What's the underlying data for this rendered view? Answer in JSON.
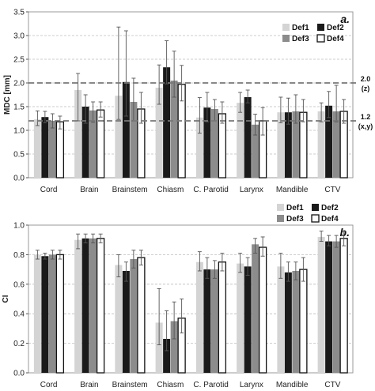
{
  "chart_data": [
    {
      "type": "bar",
      "panel_label": "a.",
      "title": "",
      "xlabel": "",
      "ylabel": "MDC [mm]",
      "ylim": [
        0,
        3.5
      ],
      "yticks": [
        "0.0",
        "0.5",
        "1.0",
        "1.5",
        "2.0",
        "2.5",
        "3.0",
        "3.5"
      ],
      "grid": "horizontal dashed",
      "legend_position": "top-right",
      "categories": [
        "Cord",
        "Brain",
        "Brainstem",
        "Chiasm",
        "C. Parotid",
        "Larynx",
        "Mandible",
        "CTV"
      ],
      "series": [
        {
          "name": "Def1",
          "color": "#d4d4d4",
          "values": [
            1.23,
            1.85,
            1.73,
            1.9,
            1.27,
            1.58,
            1.38,
            1.4
          ],
          "err_low": [
            0.13,
            0.65,
            0.5,
            0.35,
            0.33,
            0.2,
            0.22,
            0.22
          ],
          "err_high": [
            0.18,
            0.35,
            1.45,
            0.48,
            0.42,
            0.22,
            0.32,
            0.18
          ]
        },
        {
          "name": "Def2",
          "color": "#1a1a1a",
          "values": [
            1.28,
            1.5,
            2.02,
            2.33,
            1.48,
            1.7,
            1.38,
            1.52
          ],
          "err_low": [
            0.12,
            0.35,
            0.72,
            0.35,
            0.3,
            0.12,
            0.25,
            0.25
          ],
          "err_high": [
            0.12,
            0.25,
            1.08,
            0.56,
            0.32,
            0.15,
            0.3,
            0.3
          ]
        },
        {
          "name": "Def3",
          "color": "#8c8c8c",
          "values": [
            1.2,
            1.42,
            1.6,
            2.05,
            1.45,
            1.12,
            1.4,
            1.4
          ],
          "err_low": [
            0.15,
            0.25,
            0.4,
            0.35,
            0.25,
            0.22,
            0.25,
            0.22
          ],
          "err_high": [
            0.15,
            0.18,
            0.5,
            0.62,
            0.2,
            0.22,
            0.35,
            0.55
          ]
        },
        {
          "name": "Def4",
          "color": "#ffffff",
          "values": [
            1.18,
            1.43,
            1.45,
            1.97,
            1.35,
            1.2,
            1.38,
            1.4
          ],
          "err_low": [
            0.15,
            0.15,
            0.3,
            0.35,
            0.2,
            0.3,
            0.2,
            0.25
          ],
          "err_high": [
            0.12,
            0.17,
            0.35,
            0.4,
            0.25,
            0.28,
            0.27,
            0.25
          ]
        }
      ],
      "reference_lines": [
        {
          "value": 2.0,
          "label": "2.0",
          "sublabel": "(z)"
        },
        {
          "value": 1.2,
          "label": "1.2",
          "sublabel": "(x,y)"
        }
      ]
    },
    {
      "type": "bar",
      "panel_label": "b.",
      "title": "",
      "xlabel": "",
      "ylabel": "CI",
      "ylim": [
        0,
        1.0
      ],
      "yticks": [
        "0.0",
        "0.2",
        "0.4",
        "0.6",
        "0.8",
        "1.0"
      ],
      "grid": "horizontal dashed",
      "legend_position": "top-right",
      "categories": [
        "Cord",
        "Brain",
        "Brainstem",
        "Chiasm",
        "C. Parotid",
        "Larynx",
        "Mandible",
        "CTV"
      ],
      "series": [
        {
          "name": "Def1",
          "color": "#d4d4d4",
          "values": [
            0.8,
            0.9,
            0.73,
            0.34,
            0.75,
            0.74,
            0.72,
            0.92
          ],
          "err_low": [
            0.03,
            0.06,
            0.08,
            0.15,
            0.06,
            0.06,
            0.08,
            0.03
          ],
          "err_high": [
            0.03,
            0.04,
            0.07,
            0.23,
            0.07,
            0.07,
            0.09,
            0.04
          ]
        },
        {
          "name": "Def2",
          "color": "#1a1a1a",
          "values": [
            0.79,
            0.91,
            0.69,
            0.23,
            0.7,
            0.72,
            0.68,
            0.89
          ],
          "err_low": [
            0.02,
            0.03,
            0.07,
            0.08,
            0.06,
            0.06,
            0.06,
            0.03
          ],
          "err_high": [
            0.02,
            0.03,
            0.06,
            0.19,
            0.08,
            0.06,
            0.07,
            0.04
          ]
        },
        {
          "name": "Def3",
          "color": "#8c8c8c",
          "values": [
            0.8,
            0.91,
            0.77,
            0.35,
            0.7,
            0.87,
            0.69,
            0.89
          ],
          "err_low": [
            0.03,
            0.03,
            0.06,
            0.12,
            0.06,
            0.06,
            0.06,
            0.04
          ],
          "err_high": [
            0.03,
            0.03,
            0.06,
            0.13,
            0.06,
            0.04,
            0.06,
            0.04
          ]
        },
        {
          "name": "Def4",
          "color": "#ffffff",
          "values": [
            0.8,
            0.91,
            0.78,
            0.37,
            0.75,
            0.85,
            0.7,
            0.91
          ],
          "err_low": [
            0.03,
            0.03,
            0.05,
            0.1,
            0.06,
            0.06,
            0.08,
            0.05
          ],
          "err_high": [
            0.03,
            0.03,
            0.05,
            0.13,
            0.06,
            0.07,
            0.08,
            0.05
          ]
        }
      ]
    }
  ]
}
